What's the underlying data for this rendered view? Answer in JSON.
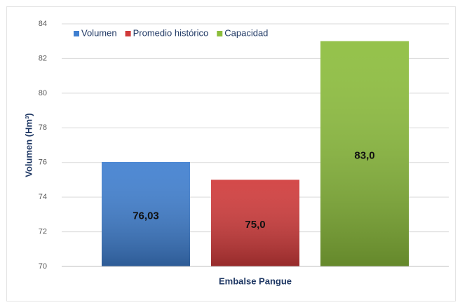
{
  "chart_data": {
    "type": "bar",
    "ylabel": "Volumen (Hm³)",
    "categories": [
      "Embalse Pangue"
    ],
    "series": [
      {
        "name": "Volumen",
        "color": "#3f7fd0",
        "values": [
          76.03
        ],
        "value_labels": [
          "76,03"
        ]
      },
      {
        "name": "Promedio histórico",
        "color": "#d03a3a",
        "values": [
          75.0
        ],
        "value_labels": [
          "75,0"
        ]
      },
      {
        "name": "Capacidad",
        "color": "#8cbd3c",
        "values": [
          83.0
        ],
        "value_labels": [
          "83,0"
        ]
      }
    ],
    "ylim": [
      70,
      84
    ],
    "yticks": [
      70,
      72,
      74,
      76,
      78,
      80,
      82,
      84
    ],
    "grid": true,
    "legend": "top-left"
  }
}
